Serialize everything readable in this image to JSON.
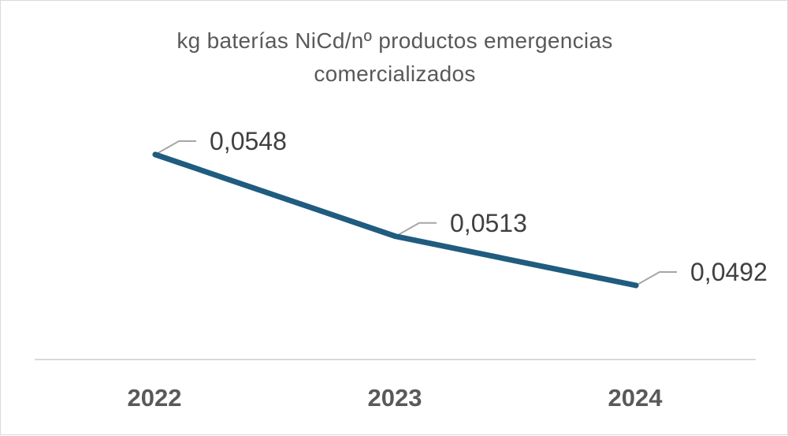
{
  "chart_data": {
    "type": "line",
    "title": "kg baterías NiCd/nº productos emergencias comercializados",
    "xlabel": "",
    "ylabel": "",
    "categories": [
      "2022",
      "2023",
      "2024"
    ],
    "series": [
      {
        "values": [
          0.0548,
          0.0513,
          0.0492
        ],
        "data_labels": [
          "0,0548",
          "0,0513",
          "0,0492"
        ]
      }
    ],
    "y_axis_visible": false,
    "grid": false,
    "legend": "none",
    "line_color": "#1f5c7f",
    "leader_line_color": "#a6a6a6",
    "axis_line_color": "#d9d9d9"
  }
}
